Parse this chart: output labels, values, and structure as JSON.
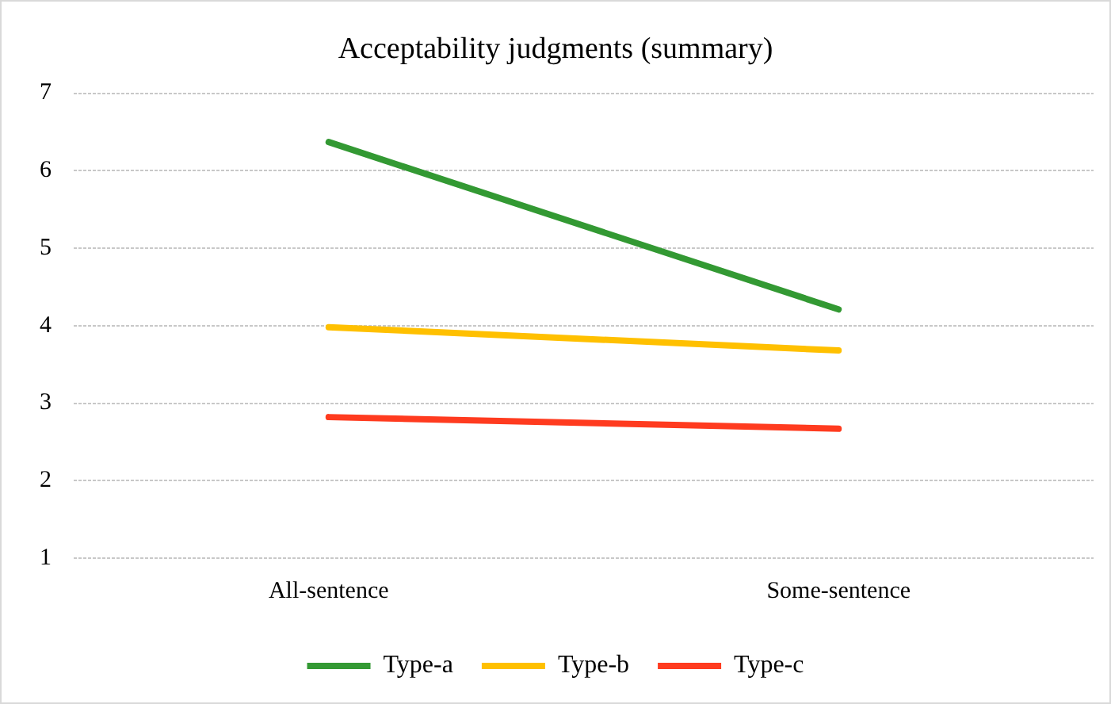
{
  "chart_data": {
    "type": "line",
    "title": "Acceptability judgments (summary)",
    "categories": [
      "All-sentence",
      "Some-sentence"
    ],
    "series": [
      {
        "name": "Type-a",
        "color": "#339933",
        "values": [
          6.37,
          4.21
        ]
      },
      {
        "name": "Type-b",
        "color": "#ffc000",
        "values": [
          3.98,
          3.68
        ]
      },
      {
        "name": "Type-c",
        "color": "#ff3b1f",
        "values": [
          2.82,
          2.67
        ]
      }
    ],
    "ylim": [
      1,
      7
    ],
    "yticks": [
      1,
      2,
      3,
      4,
      5,
      6,
      7
    ],
    "grid": "y",
    "legend": "bottom",
    "marker": "none",
    "line_style": "solid"
  }
}
